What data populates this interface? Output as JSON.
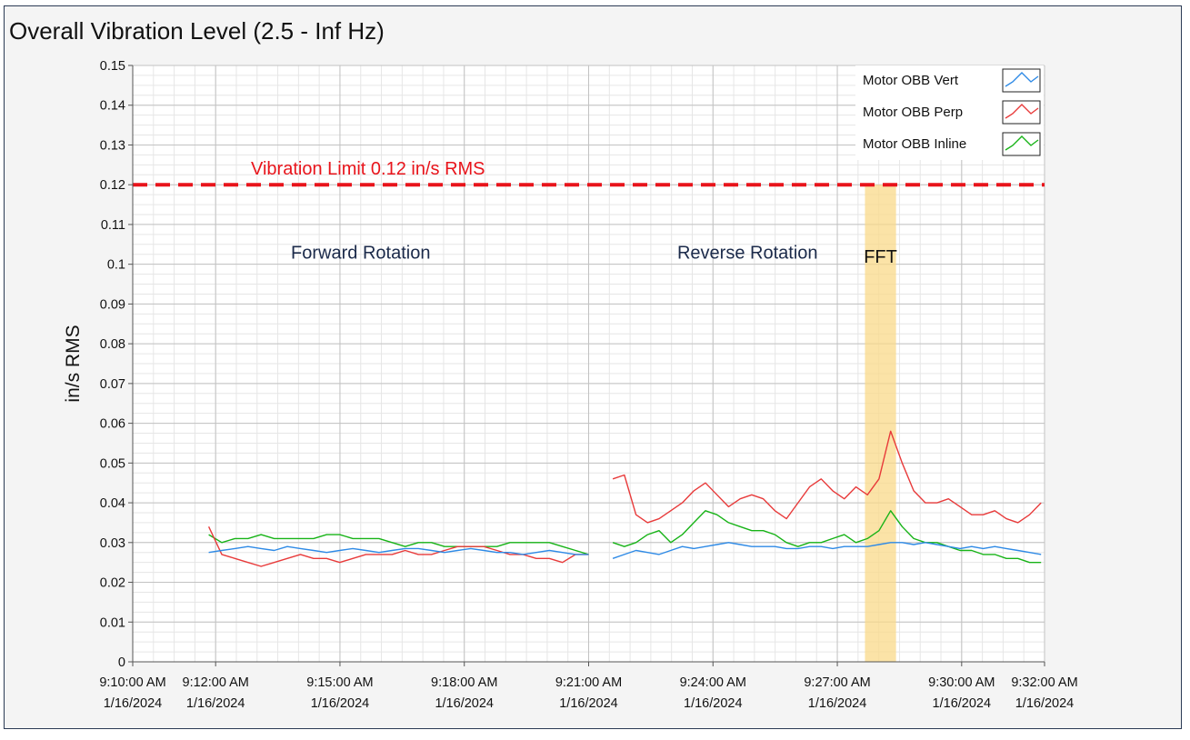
{
  "chart_data": {
    "type": "line",
    "title": "Overall Vibration Level (2.5 - Inf Hz)",
    "ylabel": "in/s RMS",
    "xlabel": "",
    "ylim": [
      0,
      0.15
    ],
    "xlim": [
      "2024-01-16 09:10:00",
      "2024-01-16 09:32:00"
    ],
    "y_ticks": [
      "0",
      "0.01",
      "0.02",
      "0.03",
      "0.04",
      "0.05",
      "0.06",
      "0.07",
      "0.08",
      "0.09",
      "0.1",
      "0.11",
      "0.12",
      "0.13",
      "0.14",
      "0.15"
    ],
    "x_ticks": [
      {
        "time": "9:10:00 AM",
        "date": "1/16/2024",
        "t": "2024-01-16 09:10:00"
      },
      {
        "time": "9:12:00 AM",
        "date": "1/16/2024",
        "t": "2024-01-16 09:12:00"
      },
      {
        "time": "9:15:00 AM",
        "date": "1/16/2024",
        "t": "2024-01-16 09:15:00"
      },
      {
        "time": "9:18:00 AM",
        "date": "1/16/2024",
        "t": "2024-01-16 09:18:00"
      },
      {
        "time": "9:21:00 AM",
        "date": "1/16/2024",
        "t": "2024-01-16 09:21:00"
      },
      {
        "time": "9:24:00 AM",
        "date": "1/16/2024",
        "t": "2024-01-16 09:24:00"
      },
      {
        "time": "9:27:00 AM",
        "date": "1/16/2024",
        "t": "2024-01-16 09:27:00"
      },
      {
        "time": "9:30:00 AM",
        "date": "1/16/2024",
        "t": "2024-01-16 09:30:00"
      },
      {
        "time": "9:32:00 AM",
        "date": "1/16/2024",
        "t": "2024-01-16 09:32:00"
      }
    ],
    "grid": true,
    "legend_position": "top-right",
    "limit_line": {
      "value": 0.12,
      "label": "Vibration Limit 0.12 in/s RMS",
      "color": "#e8141b"
    },
    "annotations": [
      {
        "text": "Forward Rotation",
        "t": "2024-01-16 09:15:30",
        "y": 0.103
      },
      {
        "text": "Reverse Rotation",
        "t": "2024-01-16 09:24:50",
        "y": 0.103
      }
    ],
    "highlight": {
      "label": "FFT",
      "t_start": "2024-01-16 09:27:40",
      "t_end": "2024-01-16 09:28:25",
      "y_top": 0.12,
      "color": "#f9d98a"
    },
    "series": [
      {
        "name": "Motor OBB Vert",
        "color": "#2e8ae6",
        "segments": [
          {
            "t_start": "2024-01-16 09:11:50",
            "t_end": "2024-01-16 09:21:00",
            "values": [
              0.0275,
              0.028,
              0.0285,
              0.029,
              0.0285,
              0.028,
              0.029,
              0.0285,
              0.028,
              0.0275,
              0.028,
              0.0285,
              0.028,
              0.0275,
              0.028,
              0.0285,
              0.0285,
              0.028,
              0.0275,
              0.028,
              0.0285,
              0.028,
              0.0275,
              0.0275,
              0.027,
              0.0275,
              0.028,
              0.0275,
              0.027,
              0.027
            ]
          },
          {
            "t_start": "2024-01-16 09:21:35",
            "t_end": "2024-01-16 09:31:55",
            "values": [
              0.026,
              0.027,
              0.028,
              0.0275,
              0.027,
              0.028,
              0.029,
              0.0285,
              0.029,
              0.0295,
              0.03,
              0.0295,
              0.029,
              0.029,
              0.029,
              0.0285,
              0.0285,
              0.029,
              0.029,
              0.0285,
              0.029,
              0.029,
              0.029,
              0.0295,
              0.03,
              0.03,
              0.0295,
              0.03,
              0.0295,
              0.029,
              0.0285,
              0.029,
              0.0285,
              0.029,
              0.0285,
              0.028,
              0.0275,
              0.027
            ]
          }
        ]
      },
      {
        "name": "Motor OBB Perp",
        "color": "#e83a3a",
        "segments": [
          {
            "t_start": "2024-01-16 09:11:50",
            "t_end": "2024-01-16 09:21:00",
            "values": [
              0.034,
              0.027,
              0.026,
              0.025,
              0.024,
              0.025,
              0.026,
              0.027,
              0.026,
              0.026,
              0.025,
              0.026,
              0.027,
              0.027,
              0.027,
              0.028,
              0.027,
              0.027,
              0.028,
              0.029,
              0.029,
              0.029,
              0.028,
              0.027,
              0.027,
              0.026,
              0.026,
              0.025,
              0.027,
              0.027
            ]
          },
          {
            "t_start": "2024-01-16 09:21:35",
            "t_end": "2024-01-16 09:31:55",
            "values": [
              0.046,
              0.047,
              0.037,
              0.035,
              0.036,
              0.038,
              0.04,
              0.043,
              0.045,
              0.042,
              0.039,
              0.041,
              0.042,
              0.041,
              0.038,
              0.036,
              0.04,
              0.044,
              0.046,
              0.043,
              0.041,
              0.044,
              0.042,
              0.046,
              0.058,
              0.05,
              0.043,
              0.04,
              0.04,
              0.041,
              0.039,
              0.037,
              0.037,
              0.038,
              0.036,
              0.035,
              0.037,
              0.04
            ]
          }
        ]
      },
      {
        "name": "Motor OBB Inline",
        "color": "#17b317",
        "segments": [
          {
            "t_start": "2024-01-16 09:11:50",
            "t_end": "2024-01-16 09:21:00",
            "values": [
              0.032,
              0.03,
              0.031,
              0.031,
              0.032,
              0.031,
              0.031,
              0.031,
              0.031,
              0.032,
              0.032,
              0.031,
              0.031,
              0.031,
              0.03,
              0.029,
              0.03,
              0.03,
              0.029,
              0.029,
              0.029,
              0.029,
              0.029,
              0.03,
              0.03,
              0.03,
              0.03,
              0.029,
              0.028,
              0.027
            ]
          },
          {
            "t_start": "2024-01-16 09:21:35",
            "t_end": "2024-01-16 09:31:55",
            "values": [
              0.03,
              0.029,
              0.03,
              0.032,
              0.033,
              0.03,
              0.032,
              0.035,
              0.038,
              0.037,
              0.035,
              0.034,
              0.033,
              0.033,
              0.032,
              0.03,
              0.029,
              0.03,
              0.03,
              0.031,
              0.032,
              0.03,
              0.031,
              0.033,
              0.038,
              0.034,
              0.031,
              0.03,
              0.03,
              0.029,
              0.028,
              0.028,
              0.027,
              0.027,
              0.026,
              0.026,
              0.025,
              0.025
            ]
          }
        ]
      }
    ]
  }
}
